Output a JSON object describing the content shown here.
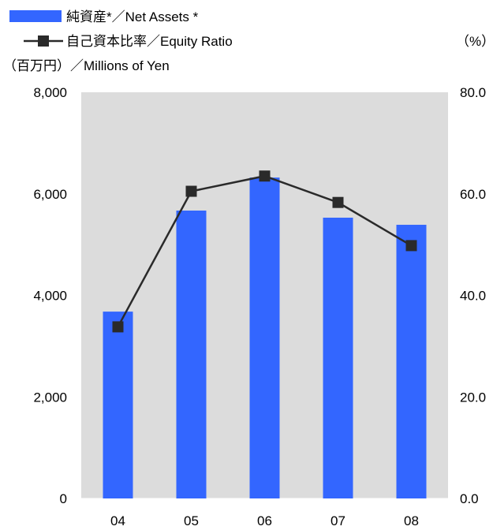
{
  "chart_data": {
    "type": "bar+line",
    "categories": [
      "04",
      "05",
      "06",
      "07",
      "08"
    ],
    "series": [
      {
        "name": "純資産*／Net Assets *",
        "type": "bar",
        "axis": "left",
        "color": "#3366ff",
        "values": [
          3680,
          5670,
          6320,
          5530,
          5390
        ]
      },
      {
        "name": "自己資本比率／Equity Ratio",
        "type": "line",
        "axis": "right",
        "color": "#2a2a2a",
        "marker": "square",
        "values": [
          33.8,
          60.5,
          63.5,
          58.3,
          49.8
        ]
      }
    ],
    "left_axis": {
      "label": "（百万円）／Millions of Yen",
      "range": [
        0,
        8000
      ],
      "ticks": [
        "0",
        "2,000",
        "4,000",
        "6,000",
        "8,000"
      ]
    },
    "right_axis": {
      "label": "（%）",
      "range": [
        0,
        80
      ],
      "ticks": [
        "0.0",
        "20.0",
        "40.0",
        "60.0",
        "80.0"
      ]
    },
    "plot_background": "#dcdcdc",
    "grid": false,
    "legend_position": "top-left"
  }
}
